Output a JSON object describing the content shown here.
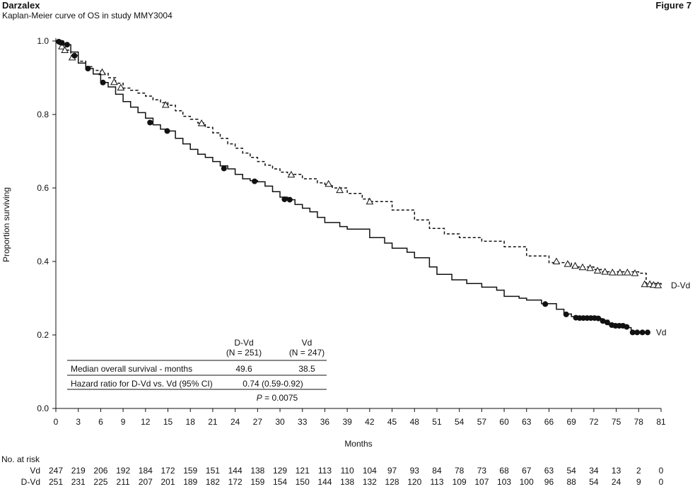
{
  "header": {
    "brand": "Darzalex",
    "subtitle": "Kaplan-Meier curve of OS in study MMY3004",
    "figure_label": "Figure 7"
  },
  "chart_data": {
    "type": "line",
    "title": "Kaplan-Meier curve of OS in study MMY3004",
    "xlabel": "Months",
    "ylabel": "Proportion surviving",
    "xlim": [
      0,
      81
    ],
    "ylim": [
      0,
      1.0
    ],
    "x_ticks": [
      "0",
      "3",
      "6",
      "9",
      "12",
      "15",
      "18",
      "21",
      "24",
      "27",
      "30",
      "33",
      "36",
      "39",
      "42",
      "45",
      "48",
      "51",
      "54",
      "57",
      "60",
      "63",
      "66",
      "69",
      "72",
      "75",
      "78",
      "81"
    ],
    "y_ticks": [
      "0.0",
      "0.2",
      "0.4",
      "0.6",
      "0.8",
      "1.0"
    ],
    "grid": false,
    "series": [
      {
        "name": "D-Vd",
        "line_style": "dashed",
        "censor_marker": "triangle",
        "points": [
          [
            0,
            1.0
          ],
          [
            0.5,
            0.99
          ],
          [
            1,
            0.975
          ],
          [
            2,
            0.96
          ],
          [
            3,
            0.945
          ],
          [
            4,
            0.93
          ],
          [
            5,
            0.92
          ],
          [
            6,
            0.912
          ],
          [
            7,
            0.9
          ],
          [
            8,
            0.885
          ],
          [
            9,
            0.872
          ],
          [
            10,
            0.866
          ],
          [
            11,
            0.858
          ],
          [
            12,
            0.85
          ],
          [
            13,
            0.84
          ],
          [
            14,
            0.832
          ],
          [
            15,
            0.825
          ],
          [
            16,
            0.81
          ],
          [
            17,
            0.795
          ],
          [
            18,
            0.787
          ],
          [
            19,
            0.777
          ],
          [
            20,
            0.765
          ],
          [
            21,
            0.75
          ],
          [
            22,
            0.735
          ],
          [
            23,
            0.72
          ],
          [
            24,
            0.708
          ],
          [
            25,
            0.695
          ],
          [
            26,
            0.683
          ],
          [
            27,
            0.672
          ],
          [
            28,
            0.662
          ],
          [
            29,
            0.652
          ],
          [
            30,
            0.643
          ],
          [
            31,
            0.637
          ],
          [
            33,
            0.625
          ],
          [
            35,
            0.614
          ],
          [
            36,
            0.61
          ],
          [
            37,
            0.6
          ],
          [
            39,
            0.585
          ],
          [
            41,
            0.57
          ],
          [
            42,
            0.563
          ],
          [
            45,
            0.54
          ],
          [
            48,
            0.513
          ],
          [
            50,
            0.49
          ],
          [
            52,
            0.475
          ],
          [
            54,
            0.465
          ],
          [
            57,
            0.455
          ],
          [
            60,
            0.44
          ],
          [
            63,
            0.415
          ],
          [
            66,
            0.397
          ],
          [
            69,
            0.385
          ],
          [
            72,
            0.378
          ],
          [
            73,
            0.372
          ],
          [
            78,
            0.368
          ],
          [
            79,
            0.34
          ],
          [
            81,
            0.335
          ]
        ],
        "censored_at": [
          [
            0.8,
            0.985
          ],
          [
            1.2,
            0.975
          ],
          [
            2.2,
            0.955
          ],
          [
            6.2,
            0.915
          ],
          [
            7.8,
            0.888
          ],
          [
            8.7,
            0.873
          ],
          [
            14.7,
            0.826
          ],
          [
            19.5,
            0.776
          ],
          [
            31.5,
            0.636
          ],
          [
            36.5,
            0.611
          ],
          [
            38,
            0.594
          ],
          [
            42,
            0.563
          ],
          [
            67,
            0.4
          ],
          [
            68.5,
            0.393
          ],
          [
            69.5,
            0.388
          ],
          [
            70.5,
            0.384
          ],
          [
            71.5,
            0.382
          ],
          [
            72.5,
            0.375
          ],
          [
            73.5,
            0.372
          ],
          [
            74.5,
            0.37
          ],
          [
            75.5,
            0.37
          ],
          [
            76.5,
            0.37
          ],
          [
            77.5,
            0.368
          ],
          [
            78.8,
            0.338
          ],
          [
            79.5,
            0.338
          ],
          [
            80,
            0.336
          ],
          [
            80.6,
            0.335
          ]
        ],
        "end_label": "D-Vd"
      },
      {
        "name": "Vd",
        "line_style": "solid",
        "censor_marker": "circle",
        "points": [
          [
            0,
            1.0
          ],
          [
            1,
            0.99
          ],
          [
            2,
            0.97
          ],
          [
            3,
            0.94
          ],
          [
            4,
            0.925
          ],
          [
            5,
            0.91
          ],
          [
            6,
            0.887
          ],
          [
            7,
            0.875
          ],
          [
            8,
            0.855
          ],
          [
            9,
            0.835
          ],
          [
            10,
            0.82
          ],
          [
            11,
            0.805
          ],
          [
            12,
            0.79
          ],
          [
            13,
            0.772
          ],
          [
            14,
            0.76
          ],
          [
            15,
            0.755
          ],
          [
            16,
            0.735
          ],
          [
            17,
            0.72
          ],
          [
            18,
            0.705
          ],
          [
            19,
            0.692
          ],
          [
            20,
            0.683
          ],
          [
            21,
            0.672
          ],
          [
            22,
            0.66
          ],
          [
            23,
            0.652
          ],
          [
            24,
            0.637
          ],
          [
            25,
            0.625
          ],
          [
            26,
            0.62
          ],
          [
            27,
            0.617
          ],
          [
            28,
            0.605
          ],
          [
            29,
            0.59
          ],
          [
            30,
            0.575
          ],
          [
            31,
            0.568
          ],
          [
            32,
            0.555
          ],
          [
            33,
            0.545
          ],
          [
            34,
            0.535
          ],
          [
            35,
            0.52
          ],
          [
            36,
            0.506
          ],
          [
            38,
            0.495
          ],
          [
            39,
            0.488
          ],
          [
            42,
            0.465
          ],
          [
            44,
            0.45
          ],
          [
            45,
            0.436
          ],
          [
            47,
            0.425
          ],
          [
            48,
            0.41
          ],
          [
            50,
            0.385
          ],
          [
            51,
            0.365
          ],
          [
            53,
            0.35
          ],
          [
            55,
            0.34
          ],
          [
            57,
            0.33
          ],
          [
            59,
            0.322
          ],
          [
            60,
            0.305
          ],
          [
            62,
            0.3
          ],
          [
            63,
            0.295
          ],
          [
            65,
            0.285
          ],
          [
            67,
            0.27
          ],
          [
            68,
            0.257
          ],
          [
            69,
            0.25
          ],
          [
            70,
            0.245
          ],
          [
            73,
            0.24
          ],
          [
            74,
            0.228
          ],
          [
            76,
            0.22
          ],
          [
            77,
            0.207
          ],
          [
            79,
            0.207
          ]
        ],
        "censored_at": [
          [
            0.4,
            0.998
          ],
          [
            0.8,
            0.995
          ],
          [
            1.5,
            0.99
          ],
          [
            2.5,
            0.96
          ],
          [
            4.3,
            0.925
          ],
          [
            6.3,
            0.887
          ],
          [
            12.6,
            0.778
          ],
          [
            14.9,
            0.755
          ],
          [
            22.5,
            0.653
          ],
          [
            26.6,
            0.618
          ],
          [
            30.6,
            0.569
          ],
          [
            31.3,
            0.568
          ],
          [
            65.5,
            0.284
          ],
          [
            68.3,
            0.256
          ],
          [
            69.6,
            0.247
          ],
          [
            70.1,
            0.246
          ],
          [
            70.6,
            0.246
          ],
          [
            71.1,
            0.246
          ],
          [
            71.6,
            0.246
          ],
          [
            72.1,
            0.246
          ],
          [
            72.6,
            0.245
          ],
          [
            73.2,
            0.238
          ],
          [
            73.8,
            0.234
          ],
          [
            74.4,
            0.227
          ],
          [
            74.9,
            0.225
          ],
          [
            75.4,
            0.225
          ],
          [
            75.9,
            0.225
          ],
          [
            76.4,
            0.222
          ],
          [
            77.2,
            0.207
          ],
          [
            77.8,
            0.207
          ],
          [
            78.5,
            0.207
          ],
          [
            79.2,
            0.207
          ]
        ],
        "end_label": "Vd"
      }
    ],
    "summary_table": {
      "col_headers": [
        {
          "line1": "D-Vd",
          "line2": "(N = 251)"
        },
        {
          "line1": "Vd",
          "line2": "(N = 247)"
        }
      ],
      "rows": [
        {
          "label": "Median overall survival - months",
          "dvd": "49.6",
          "vd": "38.5"
        },
        {
          "label": "Hazard ratio for D-Vd vs. Vd (95% CI)",
          "dvd": "0.74 (0.59-0.92)",
          "vd": ""
        }
      ],
      "p_value": {
        "symbol": "P",
        "text": " = 0.0075"
      }
    },
    "at_risk": {
      "title": "No. at risk",
      "rows": [
        {
          "label": "Vd",
          "values": [
            "247",
            "219",
            "206",
            "192",
            "184",
            "172",
            "159",
            "151",
            "144",
            "138",
            "129",
            "121",
            "113",
            "110",
            "104",
            "97",
            "93",
            "84",
            "78",
            "73",
            "68",
            "67",
            "63",
            "54",
            "34",
            "13",
            "2",
            "0"
          ]
        },
        {
          "label": "D-Vd",
          "values": [
            "251",
            "231",
            "225",
            "211",
            "207",
            "201",
            "189",
            "182",
            "172",
            "159",
            "154",
            "150",
            "144",
            "138",
            "132",
            "128",
            "120",
            "113",
            "109",
            "107",
            "103",
            "100",
            "96",
            "88",
            "54",
            "24",
            "9",
            "0"
          ]
        }
      ]
    }
  }
}
